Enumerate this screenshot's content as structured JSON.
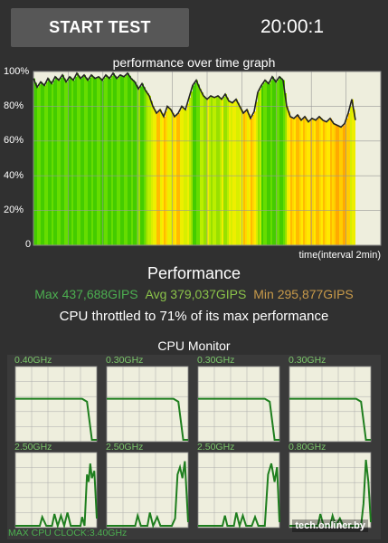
{
  "header": {
    "start_button_label": "START TEST",
    "timer": "20:00:1"
  },
  "graph": {
    "title": "performance over time graph",
    "x_axis_note": "time(interval 2min)",
    "y_ticks": [
      "100%",
      "80%",
      "60%",
      "40%",
      "20%",
      "0"
    ]
  },
  "performance": {
    "heading": "Performance",
    "max": "Max 437,688GIPS",
    "avg": "Avg 379,037GIPS",
    "min": "Min 295,877GIPS",
    "throttle_text": "CPU throttled to 71% of its max performance"
  },
  "cpu_monitor": {
    "title": "CPU Monitor",
    "cores": [
      {
        "freq": "0.40GHz"
      },
      {
        "freq": "0.30GHz"
      },
      {
        "freq": "0.30GHz"
      },
      {
        "freq": "0.30GHz"
      },
      {
        "freq": "2.50GHz"
      },
      {
        "freq": "2.50GHz"
      },
      {
        "freq": "2.50GHz"
      },
      {
        "freq": "0.80GHz"
      }
    ],
    "max_clock": "MAX CPU CLOCK:3.40GHz"
  },
  "watermark": "tech.onliner.by",
  "colors": {
    "background": "#303030",
    "button": "#575757",
    "graph_bg": "#eeeedd",
    "line": "#1e7e1e",
    "max_text": "#4caf50",
    "avg_text": "#8bc34a",
    "min_text": "#c89a4a"
  }
}
